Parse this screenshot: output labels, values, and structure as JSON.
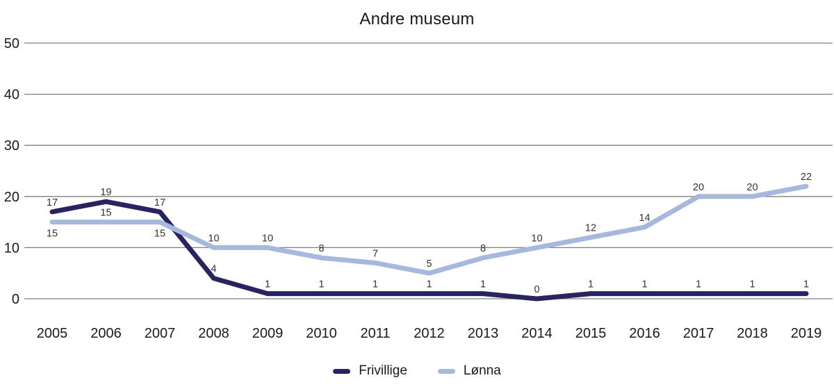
{
  "chart_data": {
    "type": "line",
    "title": "Andre museum",
    "categories": [
      "2005",
      "2006",
      "2007",
      "2008",
      "2009",
      "2010",
      "2011",
      "2012",
      "2013",
      "2014",
      "2015",
      "2016",
      "2017",
      "2018",
      "2019"
    ],
    "series": [
      {
        "name": "Frivillige",
        "color": "#282460",
        "values": [
          17,
          19,
          17,
          4,
          1,
          1,
          1,
          1,
          1,
          0,
          1,
          1,
          1,
          1,
          1
        ],
        "label_side": [
          "above",
          "above",
          "above",
          "above",
          "above",
          "above",
          "above",
          "above",
          "above",
          "above",
          "above",
          "above",
          "above",
          "above",
          "above"
        ]
      },
      {
        "name": "Lønna",
        "color": "#a6b9dd",
        "values": [
          15,
          15,
          15,
          10,
          10,
          8,
          7,
          5,
          8,
          10,
          12,
          14,
          20,
          20,
          22
        ],
        "label_side": [
          "below",
          "above",
          "below",
          "above",
          "above",
          "above",
          "above",
          "above",
          "above",
          "above",
          "above",
          "above",
          "above",
          "above",
          "above"
        ]
      }
    ],
    "ylim": [
      0,
      50
    ],
    "yticks": [
      0,
      10,
      20,
      30,
      40,
      50
    ],
    "grid": true,
    "gridline_color": "#7f7f7f",
    "text_color": "#1a1a1a",
    "legend_position": "bottom"
  }
}
